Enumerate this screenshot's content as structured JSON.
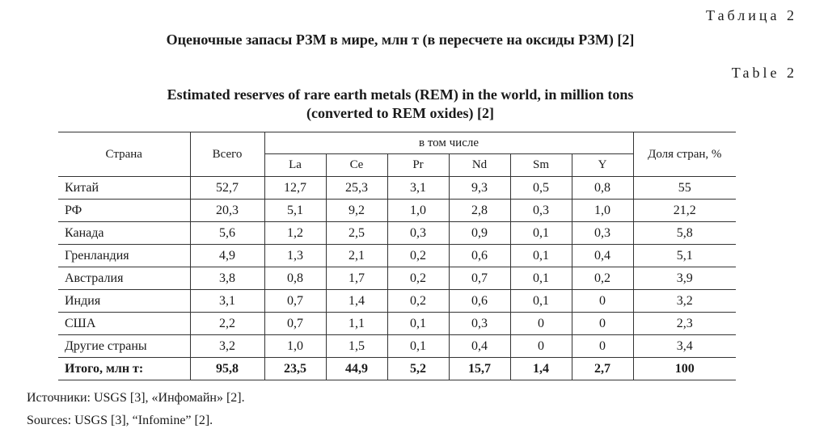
{
  "labels": {
    "table_ru": "Таблица 2",
    "table_en": "Table 2"
  },
  "titles": {
    "ru": "Оценочные запасы РЗМ в мире, млн т (в пересчете на оксиды РЗМ) [2]",
    "en_line1": "Estimated reserves of rare earth metals (REM) in the world, in million tons",
    "en_line2": "(converted to REM oxides) [2]"
  },
  "table": {
    "headers": {
      "country": "Страна",
      "total": "Всего",
      "including": "в том числе",
      "share": "Доля стран, %",
      "elements": [
        "La",
        "Ce",
        "Pr",
        "Nd",
        "Sm",
        "Y"
      ]
    },
    "rows": [
      [
        "Китай",
        "52,7",
        "12,7",
        "25,3",
        "3,1",
        "9,3",
        "0,5",
        "0,8",
        "55"
      ],
      [
        "РФ",
        "20,3",
        "5,1",
        "9,2",
        "1,0",
        "2,8",
        "0,3",
        "1,0",
        "21,2"
      ],
      [
        "Канада",
        "5,6",
        "1,2",
        "2,5",
        "0,3",
        "0,9",
        "0,1",
        "0,3",
        "5,8"
      ],
      [
        "Гренландия",
        "4,9",
        "1,3",
        "2,1",
        "0,2",
        "0,6",
        "0,1",
        "0,4",
        "5,1"
      ],
      [
        "Австралия",
        "3,8",
        "0,8",
        "1,7",
        "0,2",
        "0,7",
        "0,1",
        "0,2",
        "3,9"
      ],
      [
        "Индия",
        "3,1",
        "0,7",
        "1,4",
        "0,2",
        "0,6",
        "0,1",
        "0",
        "3,2"
      ],
      [
        "США",
        "2,2",
        "0,7",
        "1,1",
        "0,1",
        "0,3",
        "0",
        "0",
        "2,3"
      ],
      [
        "Другие страны",
        "3,2",
        "1,0",
        "1,5",
        "0,1",
        "0,4",
        "0",
        "0",
        "3,4"
      ]
    ],
    "total": [
      "Итого, млн т:",
      "95,8",
      "23,5",
      "44,9",
      "5,2",
      "15,7",
      "1,4",
      "2,7",
      "100"
    ]
  },
  "sources": {
    "ru": "Источники: USGS [3], «Инфомайн» [2].",
    "en": "Sources: USGS [3], “Infomine” [2]."
  }
}
